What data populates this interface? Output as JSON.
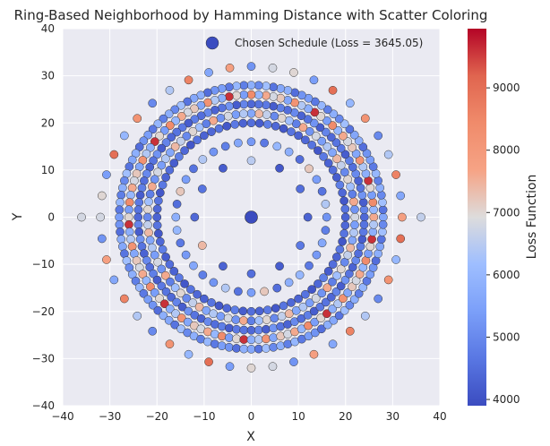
{
  "chart_data": {
    "type": "scatter",
    "title": "Ring-Based Neighborhood by Hamming Distance with Scatter Coloring",
    "xlabel": "X",
    "ylabel": "Y",
    "xlim": [
      -40,
      40
    ],
    "ylim": [
      -40,
      40
    ],
    "xticks": [
      -40,
      -30,
      -20,
      -10,
      0,
      10,
      20,
      30,
      40
    ],
    "yticks": [
      -40,
      -30,
      -20,
      -10,
      0,
      10,
      20,
      30,
      40
    ],
    "grid": true,
    "legend_position": "top-right",
    "colormap": "coolwarm",
    "colorbar": {
      "label": "Loss Function",
      "min": 3900,
      "max": 9950,
      "ticks": [
        4000,
        5000,
        6000,
        7000,
        8000,
        9000
      ]
    },
    "chosen": {
      "label": "Chosen Schedule (Loss = 3645.05)",
      "x": 0,
      "y": 0,
      "loss": 3645.05
    },
    "rings": [
      {
        "radius": 12,
        "points": 12,
        "loss_profile": [
          4300,
          4500,
          4100,
          6500,
          4200,
          4600,
          4400,
          7400,
          4300,
          4500,
          4200,
          4700
        ]
      },
      {
        "radius": 16,
        "points": 36,
        "loss_profile": [
          5200,
          6400,
          4600,
          5400,
          7200,
          4500,
          5800,
          6000,
          4700,
          5300,
          5600,
          4800
        ]
      },
      {
        "radius": 20,
        "points": 72,
        "loss_profile": [
          4300,
          4600,
          4100,
          4400,
          4800,
          4200,
          4500,
          4300,
          4700,
          4100,
          4600,
          4400
        ]
      },
      {
        "radius": 22,
        "points": 84,
        "loss_profile": [
          6800,
          5200,
          7600,
          4800,
          6200,
          7000,
          5000,
          6600,
          7400,
          5600,
          6400,
          5400
        ]
      },
      {
        "radius": 24,
        "points": 96,
        "loss_profile": [
          4400,
          4900,
          4200,
          5200,
          4600,
          4300,
          5000,
          4500,
          4800,
          4200,
          4700,
          4600
        ]
      },
      {
        "radius": 26,
        "points": 104,
        "loss_profile": [
          7600,
          6000,
          8400,
          5400,
          7000,
          9600,
          5800,
          6400,
          8200,
          5600,
          7200,
          6800
        ]
      },
      {
        "radius": 28,
        "points": 112,
        "loss_profile": [
          5600,
          4600,
          6200,
          5000,
          5800,
          4800,
          6000,
          4700,
          5400,
          5200,
          4500,
          5800
        ]
      },
      {
        "radius": 32,
        "points": 44,
        "loss_profile": [
          7800,
          5600,
          8600,
          6400,
          5000,
          8200,
          6000,
          9000,
          5400,
          7000,
          6800,
          5200
        ]
      },
      {
        "radius": 36,
        "points": 2,
        "loss_profile": [
          6600,
          6800
        ]
      }
    ]
  }
}
